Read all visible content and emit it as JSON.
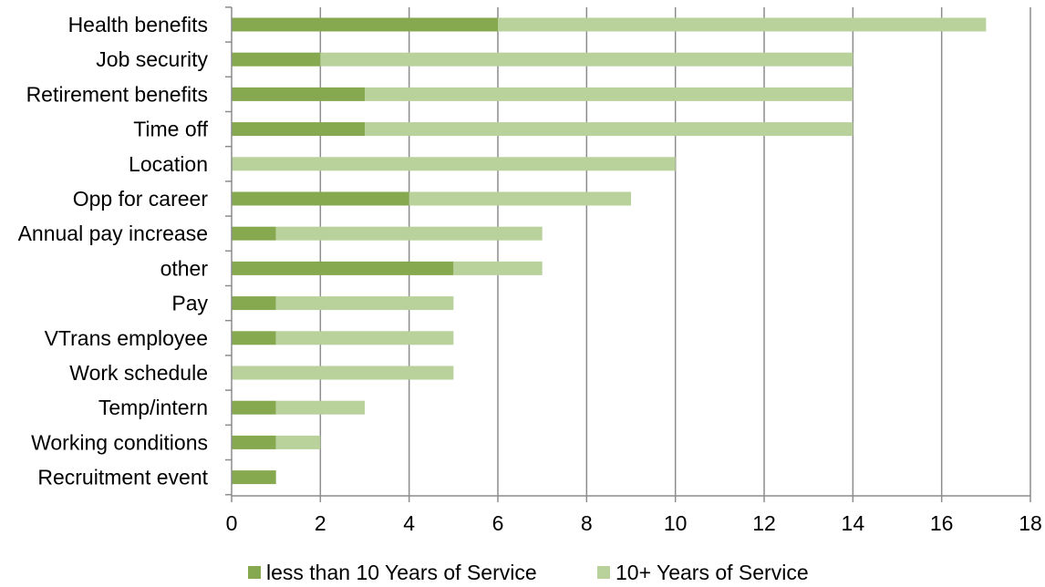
{
  "chart_data": {
    "type": "bar",
    "orientation": "horizontal",
    "stacked": true,
    "categories": [
      "Health benefits",
      "Job security",
      "Retirement benefits",
      "Time off",
      "Location",
      "Opp for career",
      "Annual pay increase",
      "other",
      "Pay",
      "VTrans employee",
      "Work schedule",
      "Temp/intern",
      "Working conditions",
      "Recruitment event"
    ],
    "series": [
      {
        "name": "less than 10 Years of Service",
        "color": "#86a84e",
        "values": [
          6,
          2,
          3,
          3,
          0,
          4,
          1,
          5,
          1,
          1,
          0,
          1,
          1,
          1
        ]
      },
      {
        "name": "10+ Years of Service",
        "color": "#b9d19a",
        "values": [
          11,
          12,
          11,
          11,
          10,
          5,
          6,
          2,
          4,
          4,
          5,
          2,
          1,
          0
        ]
      }
    ],
    "xlim": [
      0,
      18
    ],
    "xticks": [
      "0",
      "2",
      "4",
      "6",
      "8",
      "10",
      "12",
      "14",
      "16",
      "18"
    ],
    "grid": "vertical",
    "legend": "bottom-center",
    "title": "",
    "xlabel": "",
    "ylabel": ""
  }
}
